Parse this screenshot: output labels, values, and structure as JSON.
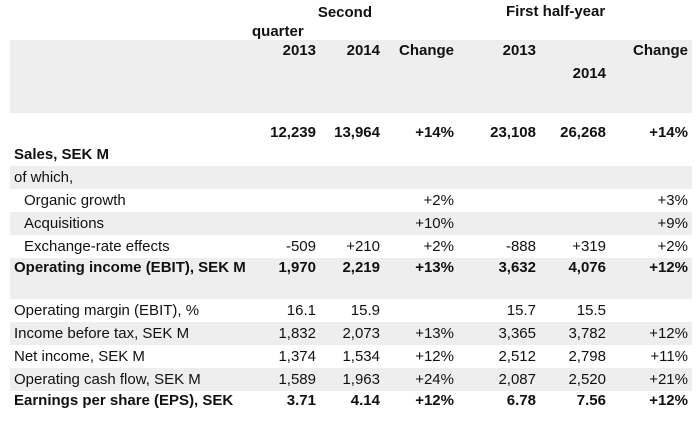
{
  "header": {
    "group_second_quarter": "Second quarter",
    "group_first_half": "First half-year"
  },
  "columns": [
    "2013",
    "2014",
    "Change",
    "2013",
    "2014",
    "Change"
  ],
  "totals_row": [
    "12,239",
    "13,964",
    "+14%",
    "23,108",
    "26,268",
    "+14%"
  ],
  "rows": [
    {
      "label": "Sales, SEK M",
      "values": [
        "",
        "",
        "",
        "",
        "",
        ""
      ]
    },
    {
      "label": "of which,",
      "values": [
        "",
        "",
        "",
        "",
        "",
        ""
      ]
    },
    {
      "label": "Organic growth",
      "values": [
        "",
        "",
        "+2%",
        "",
        "",
        "+3%"
      ]
    },
    {
      "label": "Acquisitions",
      "values": [
        "",
        "",
        "+10%",
        "",
        "",
        "+9%"
      ]
    },
    {
      "label": "Exchange-rate effects",
      "values": [
        "-509",
        "+210",
        "+2%",
        "-888",
        "+319",
        "+2%"
      ]
    },
    {
      "label": "Operating income (EBIT), SEK M",
      "values": [
        "1,970",
        "2,219",
        "+13%",
        "3,632",
        "4,076",
        "+12%"
      ]
    },
    {
      "label": "Operating margin (EBIT), %",
      "values": [
        "16.1",
        "15.9",
        "",
        "15.7",
        "15.5",
        ""
      ]
    },
    {
      "label": "Income before tax, SEK M",
      "values": [
        "1,832",
        "2,073",
        "+13%",
        "3,365",
        "3,782",
        "+12%"
      ]
    },
    {
      "label": "Net income, SEK M",
      "values": [
        "1,374",
        "1,534",
        "+12%",
        "2,512",
        "2,798",
        "+11%"
      ]
    },
    {
      "label": "Operating cash flow, SEK M",
      "values": [
        "1,589",
        "1,963",
        "+24%",
        "2,087",
        "2,520",
        "+21%"
      ]
    },
    {
      "label": "Earnings per share (EPS), SEK",
      "values": [
        "3.71",
        "4.14",
        "+12%",
        "6.78",
        "7.56",
        "+12%"
      ]
    }
  ]
}
